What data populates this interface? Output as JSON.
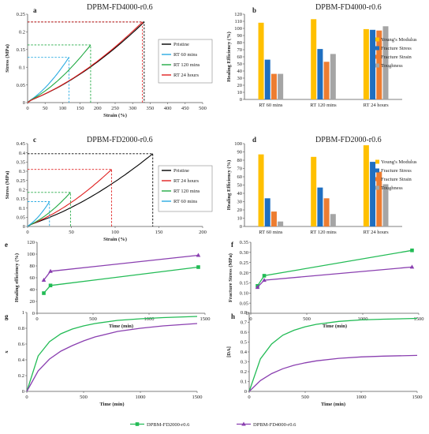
{
  "chart_data": [
    {
      "panel": "a",
      "type": "line",
      "title": "DPBM-FD4000-r0.6",
      "xlabel": "Strain (%)",
      "ylabel": "Stress (MPa)",
      "xlim": [
        0,
        500
      ],
      "ylim": [
        0,
        0.25
      ],
      "xticks": [
        "0",
        "50",
        "100",
        "150",
        "200",
        "250",
        "300",
        "350",
        "400",
        "450",
        "500"
      ],
      "yticks": [
        "0",
        "0.05",
        "0.1",
        "0.15",
        "0.2",
        "0.25"
      ],
      "series": [
        {
          "name": "Pristine",
          "color": "#000000",
          "end": [
            333,
            0.228
          ]
        },
        {
          "name": "RT 60 mins",
          "color": "#29abe2",
          "end": [
            118,
            0.128
          ]
        },
        {
          "name": "RT 120 mins",
          "color": "#22aa44",
          "end": [
            180,
            0.163
          ]
        },
        {
          "name": "RT 24 hours",
          "color": "#e02020",
          "end": [
            328,
            0.228
          ]
        }
      ],
      "legend": "right"
    },
    {
      "panel": "b",
      "type": "bar",
      "title": "DPBM-FD4000-r0.6",
      "ylabel": "Healing Efficiency (%)",
      "ylim": [
        0,
        120
      ],
      "yticks": [
        "0",
        "10",
        "20",
        "30",
        "40",
        "50",
        "60",
        "70",
        "80",
        "90",
        "100",
        "110",
        "120"
      ],
      "categories": [
        "RT 60 mins",
        "RT 120 mins",
        "RT 24 hours"
      ],
      "series": [
        {
          "name": "Young's Modulus",
          "color": "#ffc000",
          "values": [
            108,
            113,
            99
          ]
        },
        {
          "name": "Fracture Stress",
          "color": "#1f6fc1",
          "values": [
            56,
            71,
            98
          ]
        },
        {
          "name": "Fracture Strain",
          "color": "#ed7d31",
          "values": [
            36,
            53,
            97
          ]
        },
        {
          "name": "Toughness",
          "color": "#a5a5a5",
          "values": [
            36,
            64,
            103
          ]
        }
      ],
      "legend": "right"
    },
    {
      "panel": "c",
      "type": "line",
      "title": "DPBM-FD2000-r0.6",
      "xlabel": "Strain (%)",
      "ylabel": "Stress (MPa)",
      "xlim": [
        0,
        200
      ],
      "ylim": [
        0,
        0.45
      ],
      "xticks": [
        "0",
        "50",
        "100",
        "150",
        "200"
      ],
      "yticks": [
        "0",
        "0.05",
        "0.1",
        "0.15",
        "0.2",
        "0.25",
        "0.3",
        "0.35",
        "0.4",
        "0.45"
      ],
      "series": [
        {
          "name": "Pristine",
          "color": "#000000",
          "end": [
            143,
            0.395
          ]
        },
        {
          "name": "RT 24 hours",
          "color": "#e02020",
          "end": [
            96,
            0.31
          ]
        },
        {
          "name": "RT 120 mins",
          "color": "#22aa44",
          "end": [
            49,
            0.185
          ]
        },
        {
          "name": "RT 60 mins",
          "color": "#29abe2",
          "end": [
            25,
            0.135
          ]
        }
      ],
      "legend": "right"
    },
    {
      "panel": "d",
      "type": "bar",
      "title": "DPBM-FD2000-r0.6",
      "ylabel": "Healing Efficiency (%)",
      "ylim": [
        0,
        100
      ],
      "yticks": [
        "0",
        "10",
        "20",
        "30",
        "40",
        "50",
        "60",
        "70",
        "80",
        "90",
        "100"
      ],
      "categories": [
        "RT 60 mins",
        "RT 120 mins",
        "RT 24 hours"
      ],
      "series": [
        {
          "name": "Young's Modulus",
          "color": "#ffc000",
          "values": [
            87,
            84,
            98
          ]
        },
        {
          "name": "Fracture Stress",
          "color": "#1f6fc1",
          "values": [
            34,
            47,
            78
          ]
        },
        {
          "name": "Fracture Strain",
          "color": "#ed7d31",
          "values": [
            18,
            34,
            66
          ]
        },
        {
          "name": "Toughness",
          "color": "#a5a5a5",
          "values": [
            6,
            15,
            51
          ]
        }
      ],
      "legend": "right"
    },
    {
      "panel": "e",
      "type": "line",
      "xlabel": "Time (min)",
      "ylabel": "Healing efficiency (%)",
      "xlim": [
        0,
        1500
      ],
      "ylim": [
        0,
        120
      ],
      "xticks": [
        "0",
        "500",
        "1000",
        "1500"
      ],
      "yticks": [
        "0",
        "20",
        "40",
        "60",
        "80",
        "100",
        "120"
      ],
      "series": [
        {
          "name": "DPBM-FD2000-r0.6",
          "color": "#22bb55",
          "marker": "square",
          "x": [
            60,
            120,
            1440
          ],
          "y": [
            34,
            47,
            78
          ]
        },
        {
          "name": "DPBM-FD4000-r0.6",
          "color": "#8a3fb0",
          "marker": "triangle",
          "x": [
            60,
            120,
            1440
          ],
          "y": [
            56,
            71,
            98
          ]
        }
      ]
    },
    {
      "panel": "f",
      "type": "line",
      "xlabel": "Time (min)",
      "ylabel": "Fracture Stress (MPa)",
      "xlim": [
        0,
        1500
      ],
      "ylim": [
        0,
        0.35
      ],
      "xticks": [
        "0",
        "500",
        "1000",
        "1500"
      ],
      "yticks": [
        "0",
        "0.05",
        "0.10",
        "0.15",
        "0.20",
        "0.25",
        "0.30",
        "0.35"
      ],
      "series": [
        {
          "name": "DPBM-FD2000-r0.6",
          "color": "#22bb55",
          "marker": "square",
          "x": [
            60,
            120,
            1440
          ],
          "y": [
            0.135,
            0.185,
            0.31
          ]
        },
        {
          "name": "DPBM-FD4000-r0.6",
          "color": "#8a3fb0",
          "marker": "triangle",
          "x": [
            60,
            120,
            1440
          ],
          "y": [
            0.128,
            0.163,
            0.228
          ]
        }
      ]
    },
    {
      "panel": "g",
      "type": "line",
      "xlabel": "Time (min)",
      "ylabel": "x",
      "xlim": [
        0,
        1500
      ],
      "ylim": [
        0,
        1
      ],
      "xticks": [
        "0",
        "500",
        "1000",
        "1500"
      ],
      "yticks": [
        "0",
        "0.2",
        "0.4",
        "0.6",
        "0.8",
        "1"
      ],
      "series": [
        {
          "name": "DPBM-FD2000-r0.6",
          "color": "#22bb55",
          "x": [
            0,
            100,
            200,
            300,
            400,
            500,
            600,
            800,
            1000,
            1200,
            1500
          ],
          "y": [
            0,
            0.45,
            0.63,
            0.73,
            0.79,
            0.83,
            0.86,
            0.9,
            0.92,
            0.935,
            0.95
          ]
        },
        {
          "name": "DPBM-FD4000-r0.6",
          "color": "#8a3fb0",
          "x": [
            0,
            100,
            200,
            300,
            400,
            500,
            600,
            800,
            1000,
            1200,
            1500
          ],
          "y": [
            0,
            0.26,
            0.41,
            0.51,
            0.58,
            0.64,
            0.69,
            0.76,
            0.8,
            0.83,
            0.86
          ]
        }
      ]
    },
    {
      "panel": "h",
      "type": "line",
      "xlabel": "Time (min)",
      "ylabel": "[DA]",
      "xlim": [
        0,
        1500
      ],
      "ylim": [
        0,
        0.8
      ],
      "xticks": [
        "0",
        "500",
        "1000",
        "1500"
      ],
      "yticks": [
        "0",
        "0.1",
        "0.2",
        "0.3",
        "0.4",
        "0.5",
        "0.6",
        "0.7",
        "0.8"
      ],
      "series": [
        {
          "name": "DPBM-FD2000-r0.6",
          "color": "#22bb55",
          "x": [
            0,
            100,
            200,
            300,
            400,
            500,
            600,
            800,
            1000,
            1200,
            1500
          ],
          "y": [
            0,
            0.33,
            0.48,
            0.57,
            0.62,
            0.655,
            0.68,
            0.71,
            0.725,
            0.732,
            0.74
          ]
        },
        {
          "name": "DPBM-FD4000-r0.6",
          "color": "#8a3fb0",
          "x": [
            0,
            100,
            200,
            300,
            400,
            500,
            600,
            800,
            1000,
            1200,
            1500
          ],
          "y": [
            0,
            0.11,
            0.18,
            0.23,
            0.265,
            0.29,
            0.31,
            0.335,
            0.35,
            0.358,
            0.365
          ]
        }
      ]
    }
  ],
  "bottom_legend": [
    {
      "name": "DPBM-FD2000-r0.6",
      "color": "#22bb55",
      "marker": "square"
    },
    {
      "name": "DPBM-FD4000-r0.6",
      "color": "#8a3fb0",
      "marker": "triangle"
    }
  ]
}
